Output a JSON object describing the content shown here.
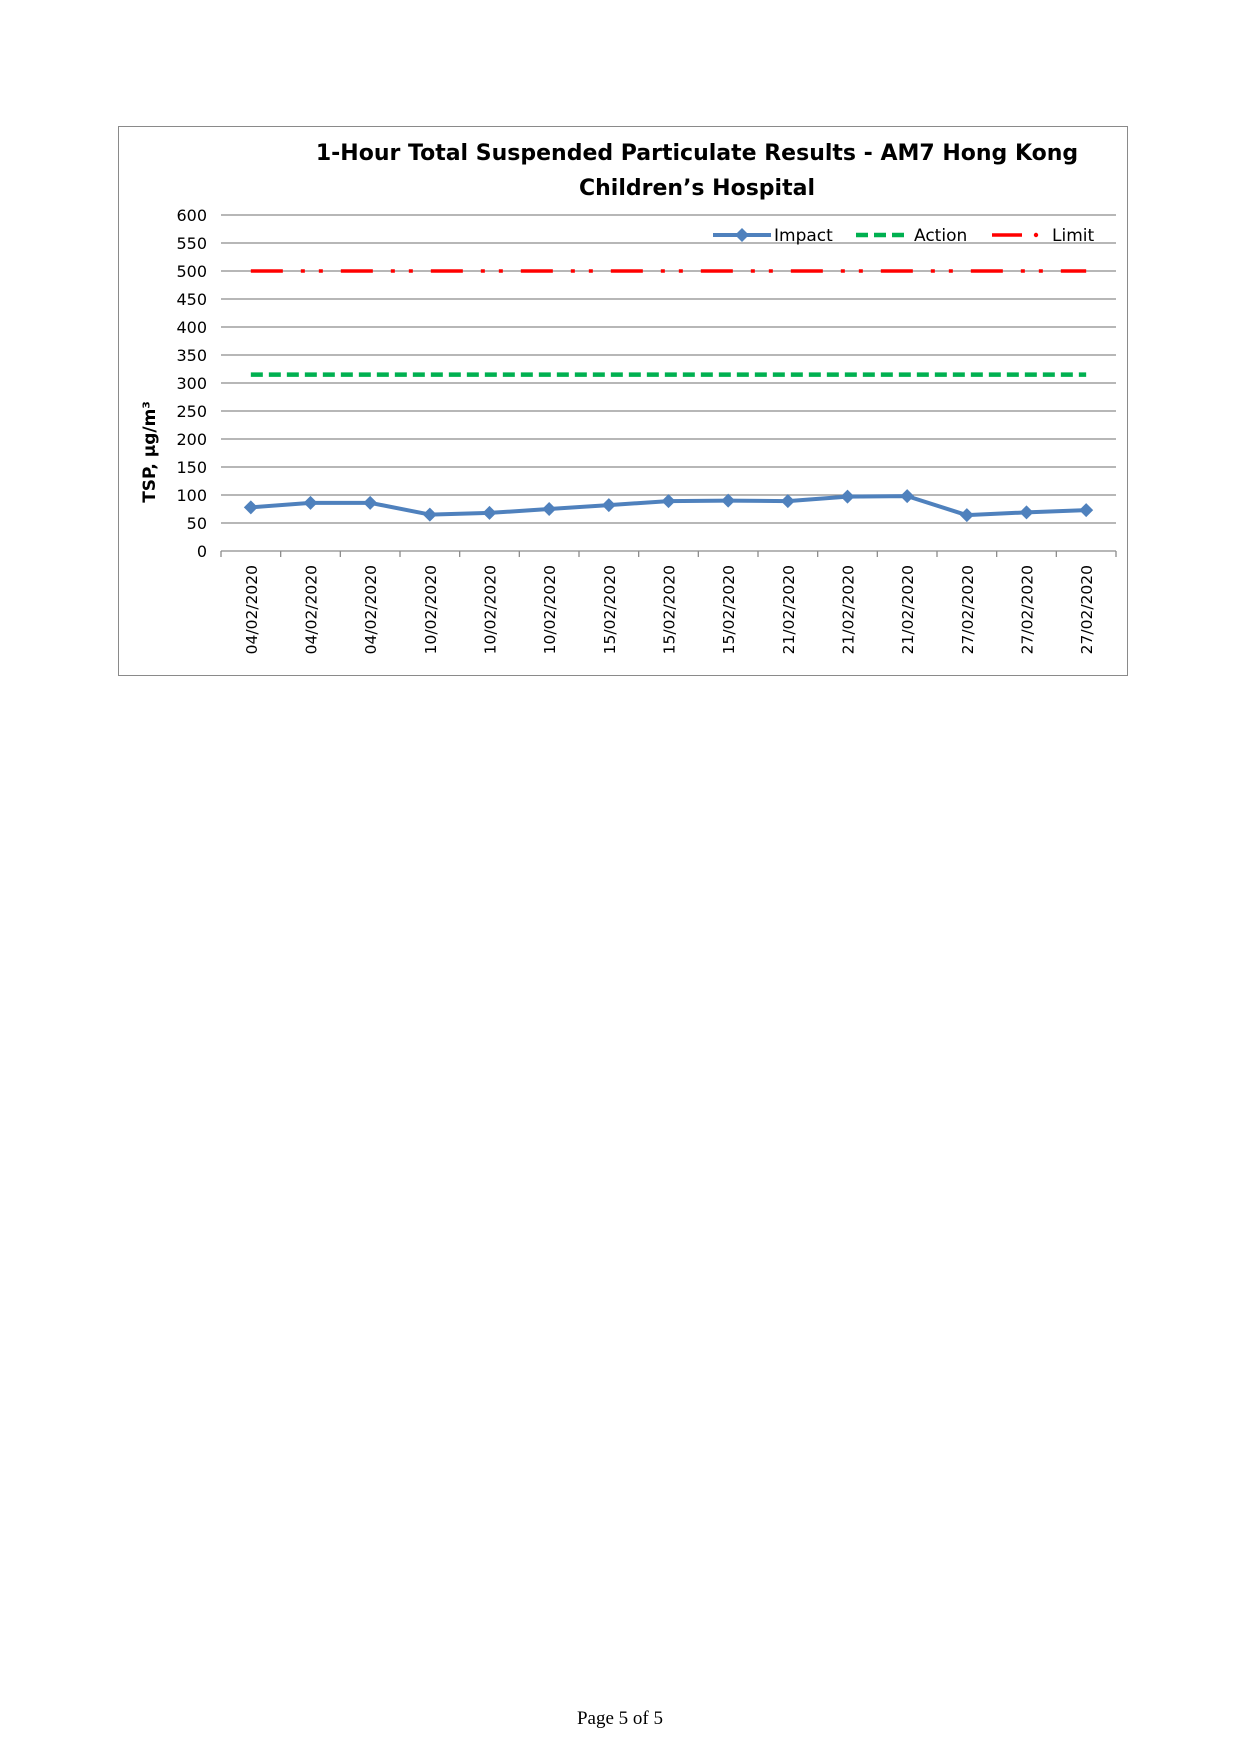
{
  "page": {
    "footer": "Page 5 of 5"
  },
  "chart_data": {
    "type": "line",
    "title_lines": [
      "1-Hour Total Suspended Particulate Results - AM7 Hong Kong",
      "Children’s Hospital"
    ],
    "ylabel": "TSP, µg/m³",
    "xlabel": "",
    "ylim": [
      0,
      600
    ],
    "yticks": [
      0,
      50,
      100,
      150,
      200,
      250,
      300,
      350,
      400,
      450,
      500,
      550,
      600
    ],
    "grid": true,
    "legend_position": "top-right",
    "categories": [
      "04/02/2020",
      "04/02/2020",
      "04/02/2020",
      "10/02/2020",
      "10/02/2020",
      "10/02/2020",
      "15/02/2020",
      "15/02/2020",
      "15/02/2020",
      "21/02/2020",
      "21/02/2020",
      "21/02/2020",
      "27/02/2020",
      "27/02/2020",
      "27/02/2020"
    ],
    "series": [
      {
        "name": "Impact",
        "color": "#4f81bd",
        "style": "solid-diamond",
        "values": [
          78,
          86,
          86,
          65,
          68,
          75,
          82,
          89,
          90,
          89,
          97,
          98,
          64,
          69,
          73
        ]
      },
      {
        "name": "Action",
        "color": "#00b050",
        "style": "dashed",
        "values": [
          315,
          315,
          315,
          315,
          315,
          315,
          315,
          315,
          315,
          315,
          315,
          315,
          315,
          315,
          315
        ]
      },
      {
        "name": "Limit",
        "color": "#ff0000",
        "style": "dash-dot-dot",
        "values": [
          500,
          500,
          500,
          500,
          500,
          500,
          500,
          500,
          500,
          500,
          500,
          500,
          500,
          500,
          500
        ]
      }
    ]
  }
}
